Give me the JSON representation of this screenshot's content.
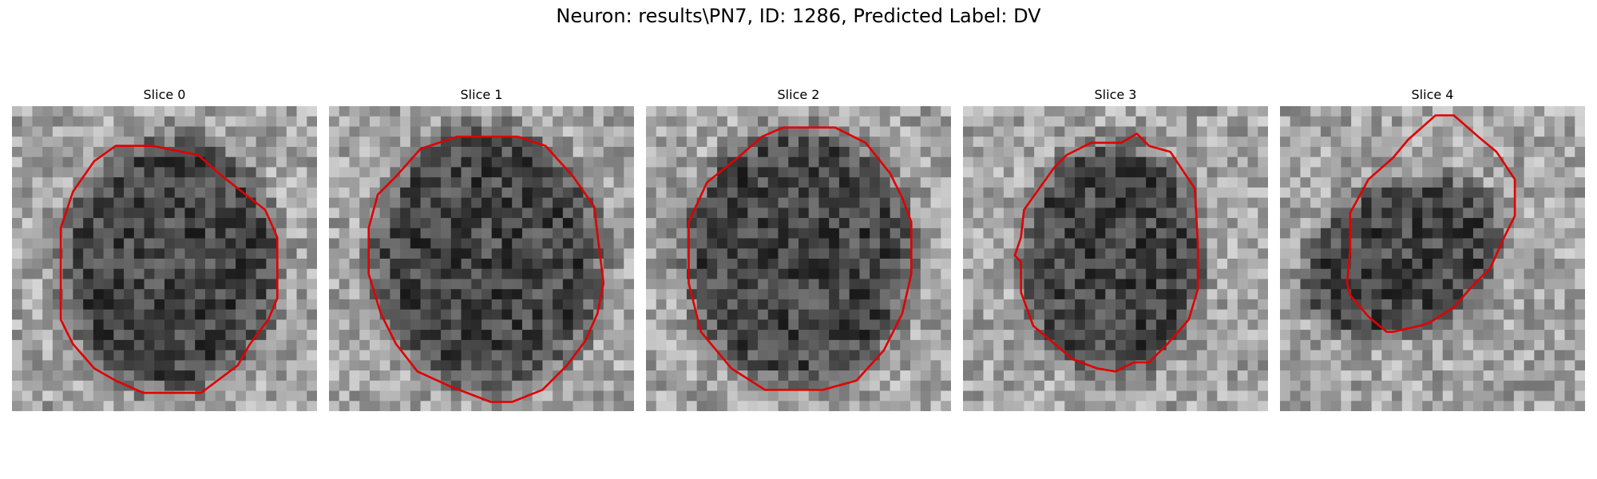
{
  "figure": {
    "title": "Neuron: results\\PN7, ID: 1286, Predicted Label: DV"
  },
  "panels": [
    {
      "title": "Slice 0"
    },
    {
      "title": "Slice 1"
    },
    {
      "title": "Slice 2"
    },
    {
      "title": "Slice 3"
    },
    {
      "title": "Slice 4"
    }
  ],
  "image_grid": {
    "rows": 30,
    "cols": 30,
    "colormap": "gray"
  },
  "contour_color": "#e00000"
}
